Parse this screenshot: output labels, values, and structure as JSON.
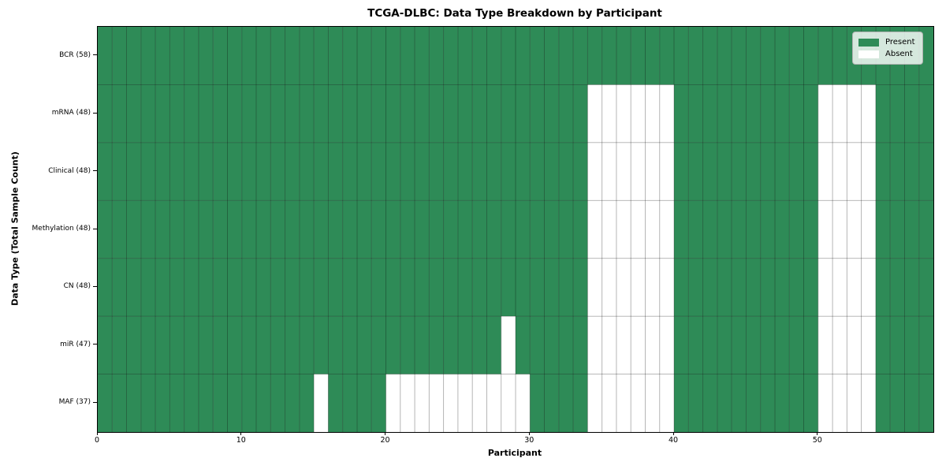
{
  "chart_data": {
    "type": "heatmap",
    "title": "TCGA-DLBC: Data Type Breakdown by Participant",
    "xlabel": "Participant",
    "ylabel": "Data Type (Total Sample Count)",
    "n_participants": 58,
    "x_ticks": [
      0,
      10,
      20,
      30,
      40,
      50
    ],
    "x_range": [
      0,
      58
    ],
    "grid": true,
    "legend_position": "upper right",
    "rows": [
      {
        "label": "BCR (58)",
        "present_count": 58,
        "absent_cols": []
      },
      {
        "label": "mRNA (48)",
        "present_count": 48,
        "absent_cols": [
          34,
          35,
          36,
          37,
          38,
          39,
          50,
          51,
          52,
          53
        ]
      },
      {
        "label": "Clinical (48)",
        "present_count": 48,
        "absent_cols": [
          34,
          35,
          36,
          37,
          38,
          39,
          50,
          51,
          52,
          53
        ]
      },
      {
        "label": "Methylation (48)",
        "present_count": 48,
        "absent_cols": [
          34,
          35,
          36,
          37,
          38,
          39,
          50,
          51,
          52,
          53
        ]
      },
      {
        "label": "CN (48)",
        "present_count": 48,
        "absent_cols": [
          34,
          35,
          36,
          37,
          38,
          39,
          50,
          51,
          52,
          53
        ]
      },
      {
        "label": "miR (47)",
        "present_count": 47,
        "absent_cols": [
          28,
          34,
          35,
          36,
          37,
          38,
          39,
          50,
          51,
          52,
          53
        ]
      },
      {
        "label": "MAF (37)",
        "present_count": 37,
        "absent_cols": [
          15,
          20,
          21,
          22,
          23,
          24,
          25,
          26,
          27,
          28,
          29,
          34,
          35,
          36,
          37,
          38,
          39,
          50,
          51,
          52,
          53
        ]
      }
    ],
    "legend": [
      {
        "label": "Present",
        "color": "#2e8b57"
      },
      {
        "label": "Absent",
        "color": "#ffffff"
      }
    ],
    "colors": {
      "present": "#2e8b57",
      "absent": "#ffffff",
      "grid_line": "#000000",
      "grid_alpha": 0.32,
      "spine": "#000000",
      "legend_border": "#b3b3b3"
    }
  }
}
